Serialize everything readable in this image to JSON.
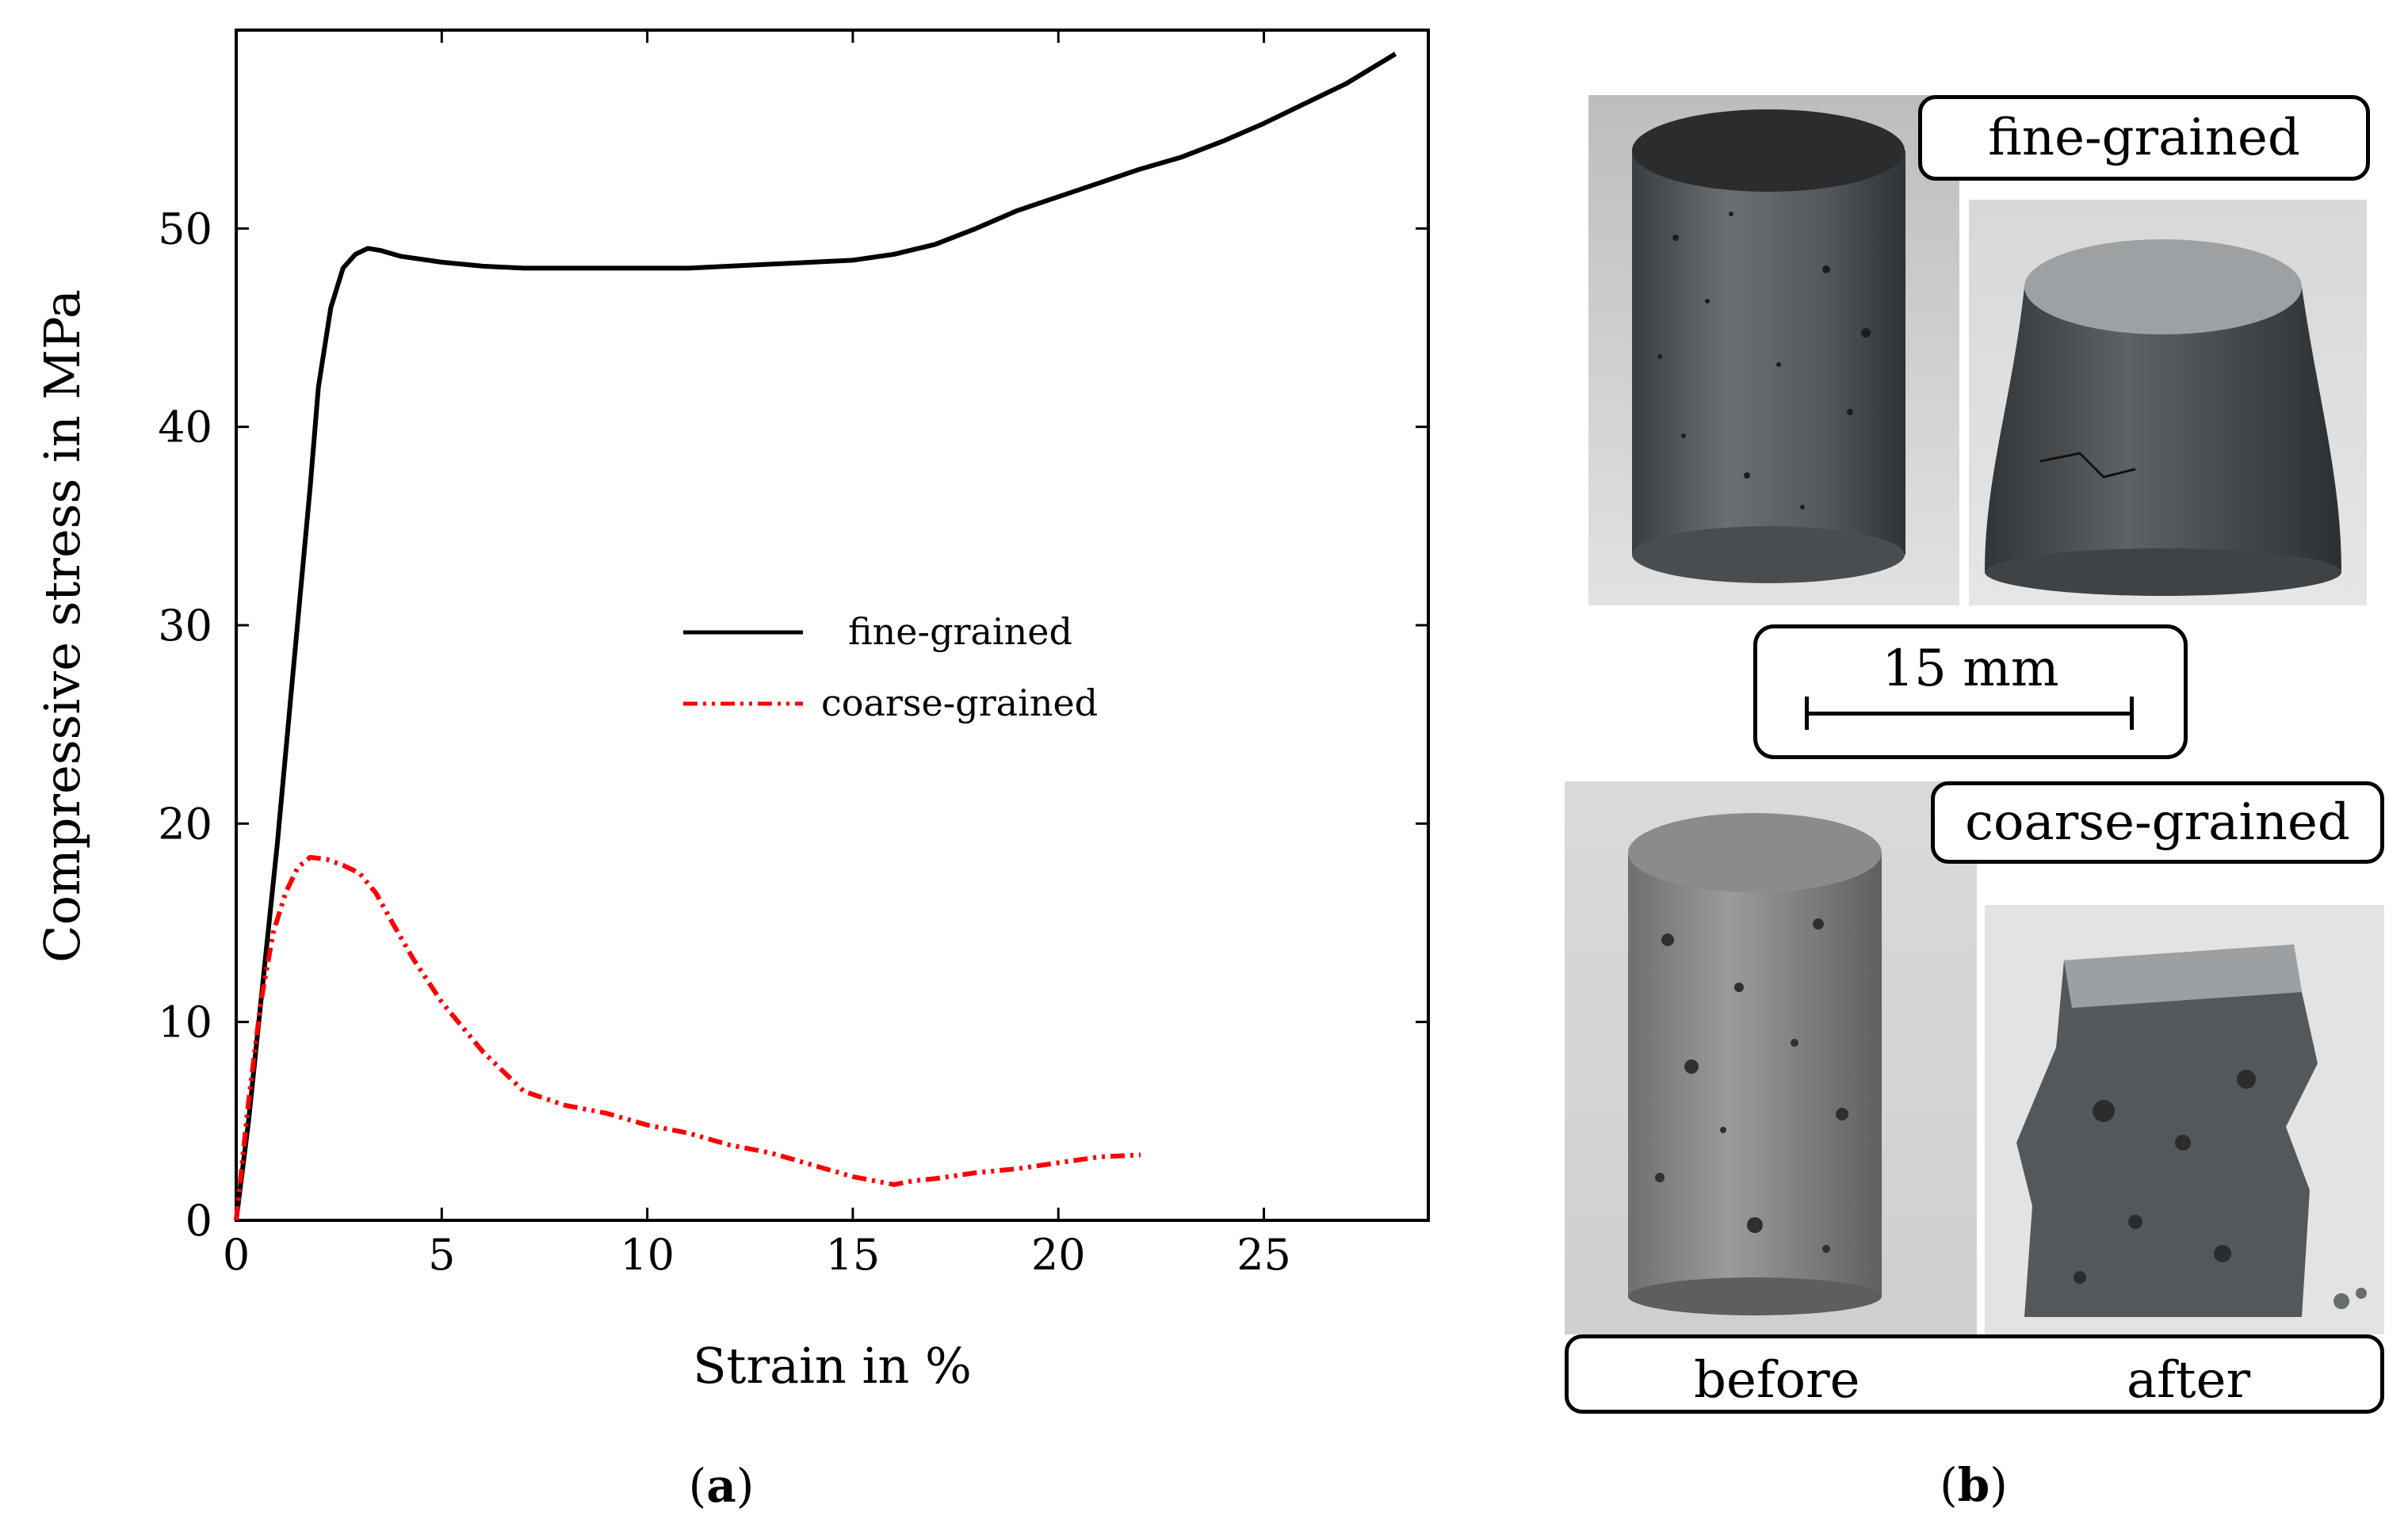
{
  "chart_data": {
    "type": "line",
    "xlabel": "Strain in %",
    "ylabel": "Compressive stress in MPa",
    "xlim": [
      0,
      29
    ],
    "ylim": [
      0,
      60
    ],
    "xticks": [
      0,
      5,
      10,
      15,
      20,
      25
    ],
    "yticks": [
      0,
      10,
      20,
      30,
      40,
      50
    ],
    "grid": false,
    "legend_position": "center-right",
    "series": [
      {
        "name": "fine-grained",
        "color": "#000000",
        "style": "solid",
        "x": [
          0,
          0.3,
          0.6,
          1.0,
          1.4,
          1.8,
          2.0,
          2.3,
          2.6,
          2.9,
          3.2,
          3.5,
          4,
          5,
          6,
          7,
          8,
          9,
          10,
          11,
          12,
          13,
          14,
          15,
          16,
          17,
          18,
          19,
          20,
          21,
          22,
          23,
          24,
          25,
          26,
          27,
          28.2
        ],
        "y": [
          0,
          5,
          11,
          19,
          28,
          37,
          42,
          46,
          48,
          48.7,
          49,
          48.9,
          48.6,
          48.3,
          48.1,
          48.0,
          48.0,
          48.0,
          48.0,
          48.0,
          48.1,
          48.2,
          48.3,
          48.4,
          48.7,
          49.2,
          50.0,
          50.9,
          51.6,
          52.3,
          53.0,
          53.6,
          54.4,
          55.3,
          56.3,
          57.3,
          58.8
        ]
      },
      {
        "name": "coarse-grained",
        "color": "#ff0000",
        "style": "dash-dot-dot",
        "x": [
          0,
          0.3,
          0.6,
          0.9,
          1.2,
          1.5,
          1.8,
          2.2,
          2.6,
          3.0,
          3.4,
          3.8,
          4.3,
          5,
          6,
          7,
          8,
          9,
          10,
          11,
          12,
          13,
          14,
          15,
          16,
          16.5,
          17,
          18,
          19,
          20,
          21,
          22
        ],
        "y": [
          0,
          6,
          11,
          14.5,
          16.5,
          17.8,
          18.3,
          18.2,
          17.9,
          17.5,
          16.5,
          15,
          13.2,
          11,
          8.5,
          6.5,
          5.8,
          5.4,
          4.8,
          4.4,
          3.8,
          3.4,
          2.8,
          2.2,
          1.8,
          2.0,
          2.1,
          2.4,
          2.6,
          2.9,
          3.2,
          3.3
        ]
      }
    ]
  },
  "captions": {
    "a": "a",
    "b": "b"
  },
  "photo_panel": {
    "fine_label": "fine-grained",
    "coarse_label": "coarse-grained",
    "scale_label": "15 mm",
    "before_label": "before",
    "after_label": "after"
  },
  "colors": {
    "fine": "#000000",
    "coarse": "#ff0000",
    "photo_bg": "#c9c9c9"
  }
}
